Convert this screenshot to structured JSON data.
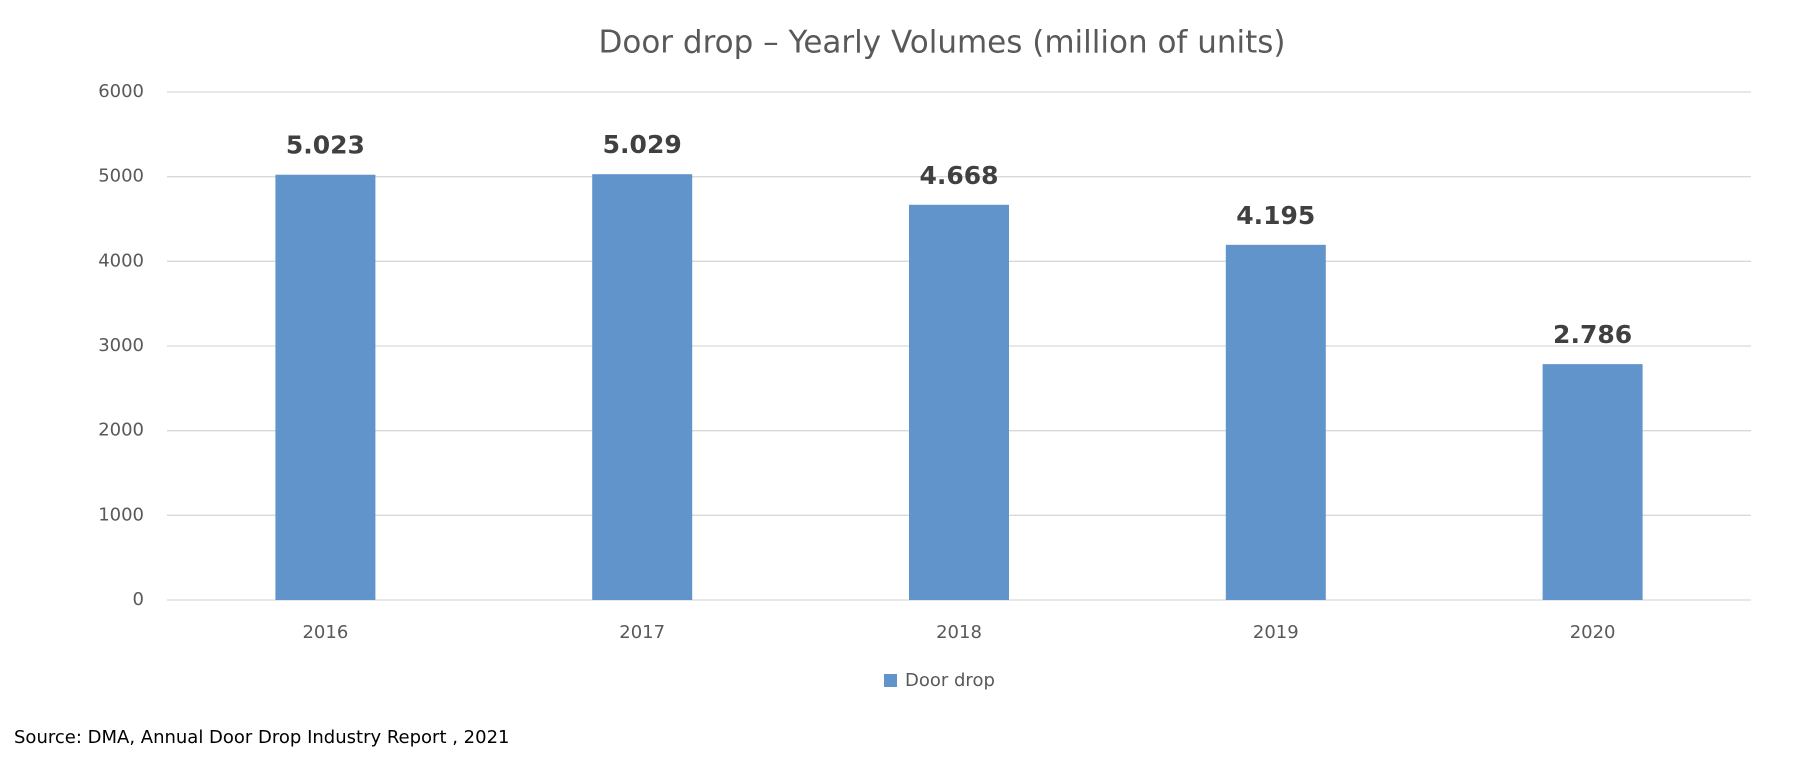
{
  "chart_data": {
    "type": "bar",
    "title": "Door drop – Yearly Volumes (million of units)",
    "categories": [
      "2016",
      "2017",
      "2018",
      "2019",
      "2020"
    ],
    "series": [
      {
        "name": "Door drop",
        "color": "#6294cc",
        "values": [
          5023,
          5029,
          4668,
          4195,
          2786
        ],
        "value_labels": [
          "5.023",
          "5.029",
          "4.668",
          "4.195",
          "2.786"
        ]
      }
    ],
    "ylim": [
      0,
      6000
    ],
    "yticks": [
      0,
      1000,
      2000,
      3000,
      4000,
      5000,
      6000
    ],
    "grid": true,
    "legend": "bottom",
    "source": "Source: DMA, Annual Door Drop Industry Report , 2021"
  }
}
